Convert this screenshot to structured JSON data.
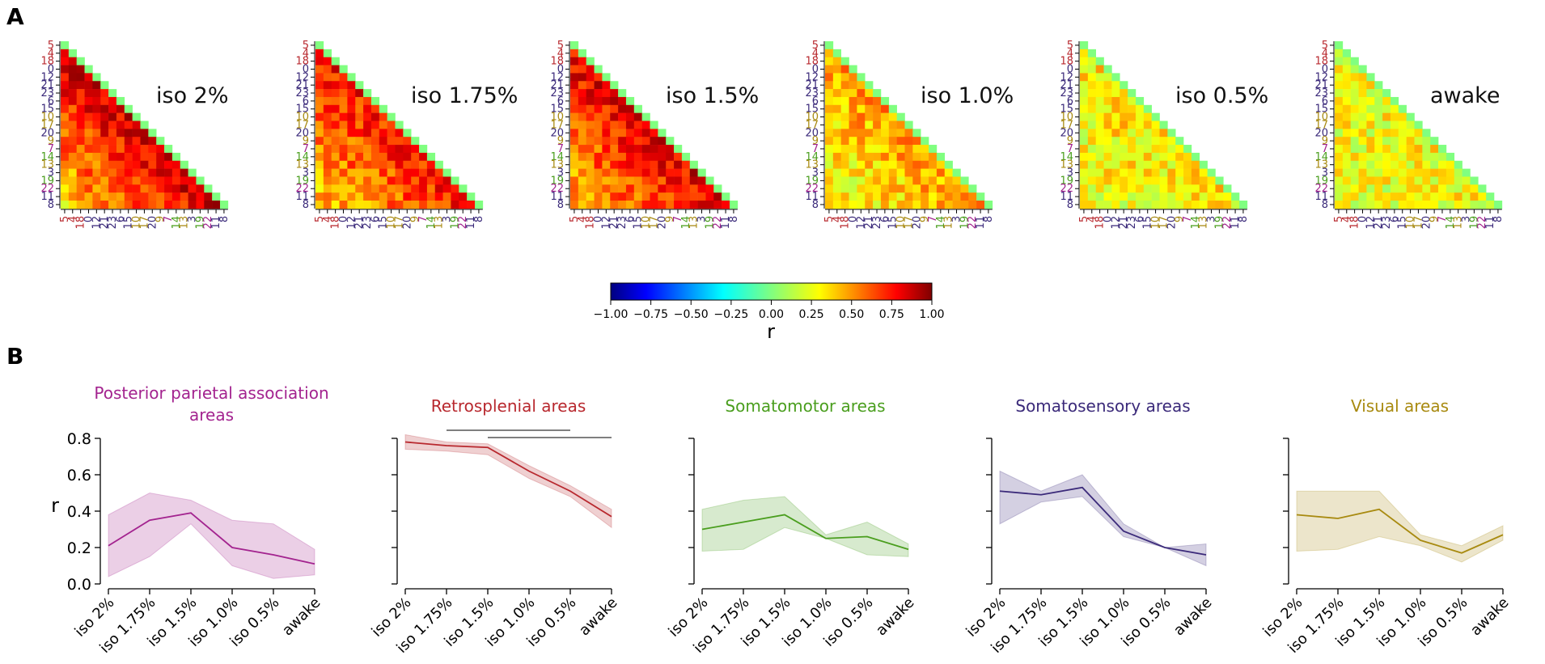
{
  "panel_labels": {
    "a": "A",
    "b": "B"
  },
  "colorbar": {
    "label": "r",
    "ticks": [
      "−1.00",
      "−0.75",
      "−0.50",
      "−0.25",
      "0.00",
      "0.25",
      "0.50",
      "0.75",
      "1.00"
    ],
    "range": [
      -1,
      1
    ]
  },
  "region_order": [
    {
      "id": "5",
      "group": "Retrosplenial"
    },
    {
      "id": "4",
      "group": "Retrosplenial"
    },
    {
      "id": "18",
      "group": "Retrosplenial"
    },
    {
      "id": "0",
      "group": "Somatosensory"
    },
    {
      "id": "12",
      "group": "Somatosensory"
    },
    {
      "id": "21",
      "group": "Somatosensory"
    },
    {
      "id": "23",
      "group": "Somatosensory"
    },
    {
      "id": "6",
      "group": "Somatosensory"
    },
    {
      "id": "15",
      "group": "Somatosensory"
    },
    {
      "id": "10",
      "group": "Visual"
    },
    {
      "id": "17",
      "group": "Visual"
    },
    {
      "id": "20",
      "group": "Somatosensory"
    },
    {
      "id": "9",
      "group": "Visual"
    },
    {
      "id": "7",
      "group": "Posterior parietal"
    },
    {
      "id": "14",
      "group": "Somatomotor"
    },
    {
      "id": "13",
      "group": "Visual"
    },
    {
      "id": "3",
      "group": "Somatosensory"
    },
    {
      "id": "19",
      "group": "Somatomotor"
    },
    {
      "id": "22",
      "group": "Posterior parietal"
    },
    {
      "id": "11",
      "group": "Somatosensory"
    },
    {
      "id": "8",
      "group": "Somatosensory"
    }
  ],
  "group_colors": {
    "Retrosplenial": "#b8282e",
    "Somatosensory": "#3b2a7a",
    "Visual": "#a88a10",
    "Posterior parietal": "#a3238f",
    "Somatomotor": "#4a9e1e"
  },
  "heatmaps": [
    {
      "title": "iso 2%",
      "mean_r": 0.7,
      "decay": 0.55
    },
    {
      "title": "iso 1.75%",
      "mean_r": 0.62,
      "decay": 0.4
    },
    {
      "title": "iso 1.5%",
      "mean_r": 0.68,
      "decay": 0.45
    },
    {
      "title": "iso 1.0%",
      "mean_r": 0.38,
      "decay": 0.25
    },
    {
      "title": "iso 0.5%",
      "mean_r": 0.28,
      "decay": 0.1
    },
    {
      "title": "awake",
      "mean_r": 0.24,
      "decay": 0.05
    }
  ],
  "chart_data": [
    {
      "type": "line",
      "title": "Posterior parietal association areas",
      "title_lines": [
        "Posterior parietal association",
        "areas"
      ],
      "color": "#a3238f",
      "categories": [
        "iso 2%",
        "iso 1.75%",
        "iso 1.5%",
        "iso 1.0%",
        "iso 0.5%",
        "awake"
      ],
      "values": [
        0.21,
        0.35,
        0.39,
        0.2,
        0.16,
        0.11
      ],
      "lower": [
        0.04,
        0.15,
        0.33,
        0.1,
        0.03,
        0.05
      ],
      "upper": [
        0.38,
        0.5,
        0.46,
        0.35,
        0.33,
        0.19
      ],
      "ylabel": "r",
      "yticks": [
        "0.0",
        "0.2",
        "0.4",
        "0.6",
        "0.8"
      ],
      "ylim": [
        0,
        0.8
      ]
    },
    {
      "type": "line",
      "title": "Retrosplenial areas",
      "title_lines": [
        "Retrosplenial areas"
      ],
      "color": "#b8282e",
      "categories": [
        "iso 2%",
        "iso 1.75%",
        "iso 1.5%",
        "iso 1.0%",
        "iso 0.5%",
        "awake"
      ],
      "values": [
        0.78,
        0.76,
        0.75,
        0.62,
        0.51,
        0.37
      ],
      "lower": [
        0.74,
        0.73,
        0.71,
        0.58,
        0.48,
        0.31
      ],
      "upper": [
        0.82,
        0.78,
        0.77,
        0.65,
        0.54,
        0.41
      ],
      "ylim": [
        0,
        0.8
      ],
      "significance": [
        {
          "from": 1,
          "to": 4
        },
        {
          "from": 2,
          "to": 5
        }
      ]
    },
    {
      "type": "line",
      "title": "Somatomotor areas",
      "title_lines": [
        "Somatomotor areas"
      ],
      "color": "#4a9e1e",
      "categories": [
        "iso 2%",
        "iso 1.75%",
        "iso 1.5%",
        "iso 1.0%",
        "iso 0.5%",
        "awake"
      ],
      "values": [
        0.3,
        0.34,
        0.38,
        0.25,
        0.26,
        0.19
      ],
      "lower": [
        0.18,
        0.19,
        0.31,
        0.25,
        0.16,
        0.15
      ],
      "upper": [
        0.41,
        0.46,
        0.48,
        0.27,
        0.34,
        0.22
      ],
      "ylim": [
        0,
        0.8
      ]
    },
    {
      "type": "line",
      "title": "Somatosensory areas",
      "title_lines": [
        "Somatosensory areas"
      ],
      "color": "#3b2a7a",
      "categories": [
        "iso 2%",
        "iso 1.75%",
        "iso 1.5%",
        "iso 1.0%",
        "iso 0.5%",
        "awake"
      ],
      "values": [
        0.51,
        0.49,
        0.53,
        0.29,
        0.2,
        0.16
      ],
      "lower": [
        0.33,
        0.45,
        0.48,
        0.26,
        0.2,
        0.1
      ],
      "upper": [
        0.62,
        0.51,
        0.6,
        0.33,
        0.2,
        0.22
      ],
      "ylim": [
        0,
        0.8
      ]
    },
    {
      "type": "line",
      "title": "Visual areas",
      "title_lines": [
        "Visual areas"
      ],
      "color": "#a88a10",
      "categories": [
        "iso 2%",
        "iso 1.75%",
        "iso 1.5%",
        "iso 1.0%",
        "iso 0.5%",
        "awake"
      ],
      "values": [
        0.38,
        0.36,
        0.41,
        0.24,
        0.17,
        0.27
      ],
      "lower": [
        0.18,
        0.19,
        0.26,
        0.21,
        0.12,
        0.24
      ],
      "upper": [
        0.51,
        0.51,
        0.51,
        0.27,
        0.21,
        0.32
      ],
      "ylim": [
        0,
        0.8
      ]
    }
  ]
}
